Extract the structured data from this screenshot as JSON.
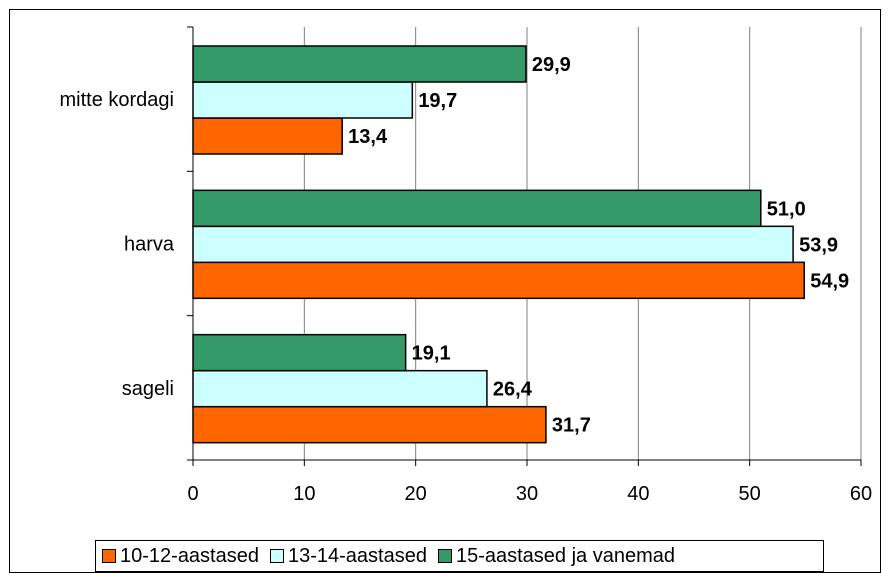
{
  "chart_data": {
    "type": "bar",
    "orientation": "horizontal",
    "categories": [
      "mitte kordagi",
      "harva",
      "sageli"
    ],
    "series": [
      {
        "name": "10-12-aastased",
        "color": "#FF6600",
        "values": [
          13.4,
          54.9,
          31.7
        ],
        "labels": [
          "13,4",
          "54,9",
          "31,7"
        ]
      },
      {
        "name": "13-14-aastased",
        "color": "#CCFFFF",
        "values": [
          19.7,
          53.9,
          26.4
        ],
        "labels": [
          "19,7",
          "53,9",
          "26,4"
        ]
      },
      {
        "name": "15-aastased ja vanemad",
        "color": "#339966",
        "values": [
          29.9,
          51.0,
          19.1
        ],
        "labels": [
          "29,9",
          "51,0",
          "19,1"
        ]
      }
    ],
    "xlim": [
      0,
      60
    ],
    "x_ticks": [
      "0",
      "10",
      "20",
      "30",
      "40",
      "50",
      "60"
    ],
    "grid": "vertical",
    "legend_position": "bottom"
  }
}
